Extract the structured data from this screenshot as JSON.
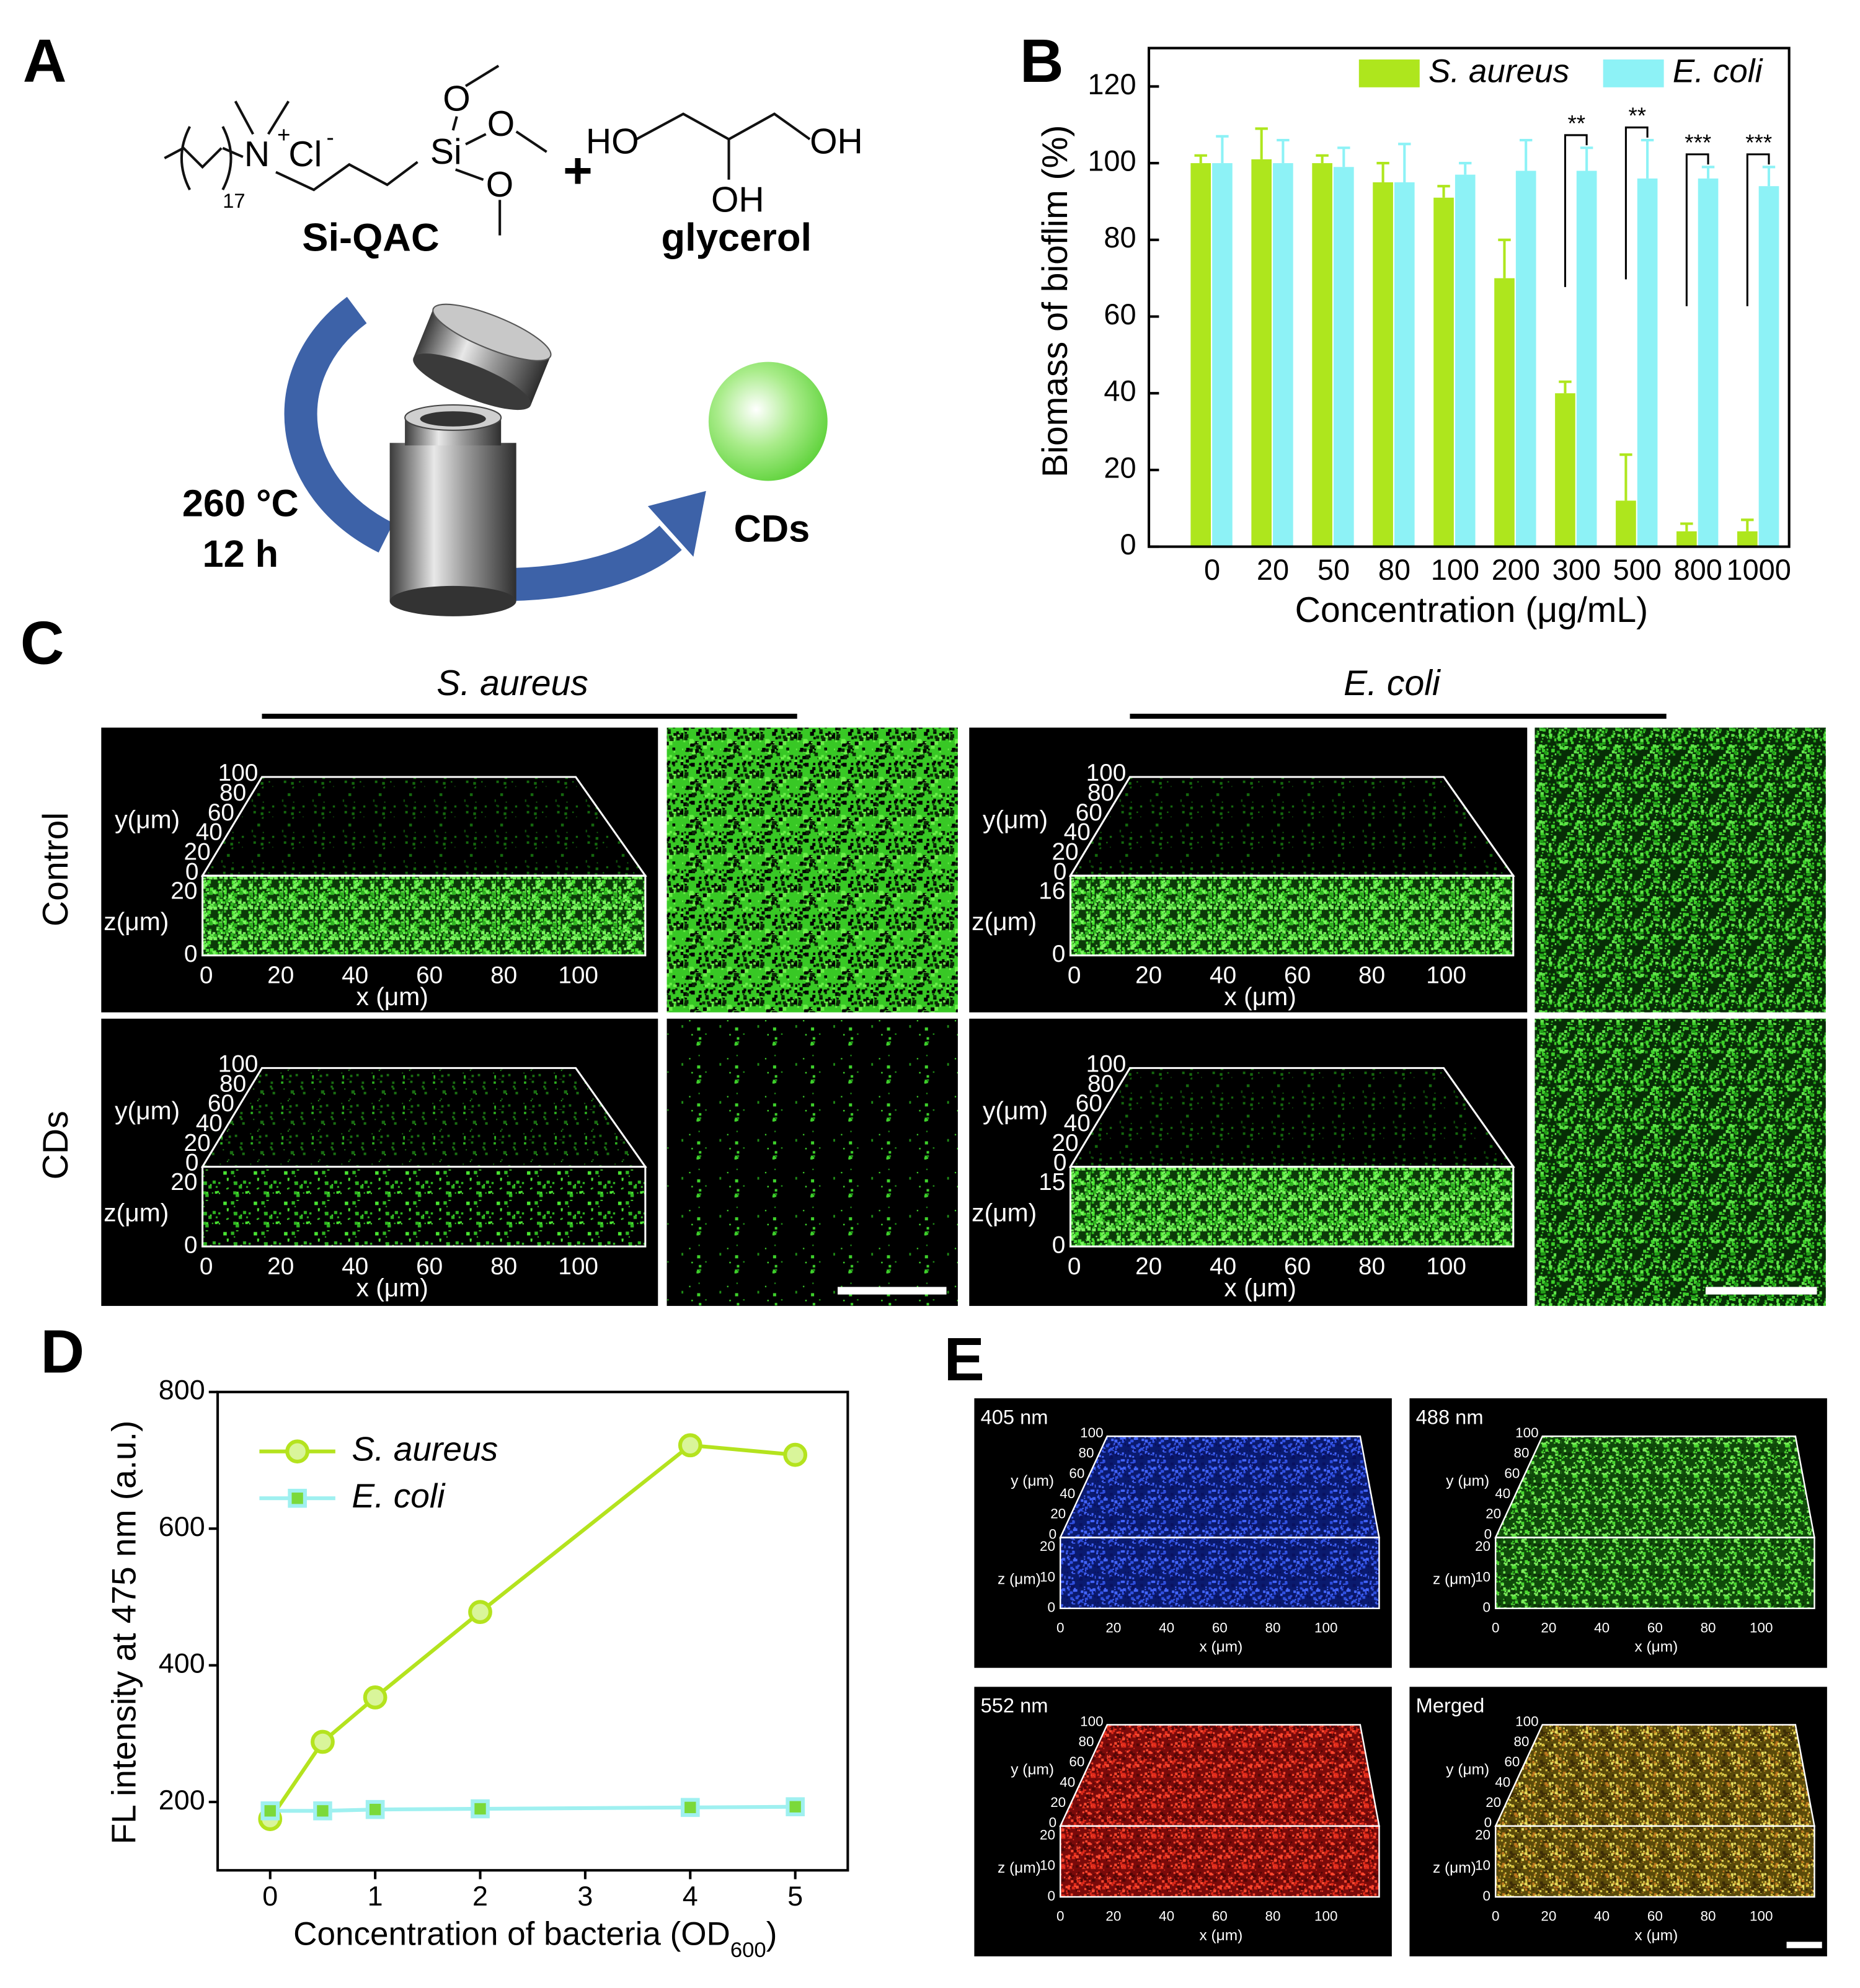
{
  "panels": {
    "A": {
      "letter": "A",
      "reactant1": {
        "atoms": [
          "N",
          "+",
          "Cl",
          "-",
          "17",
          "Si",
          "O",
          "O",
          "O"
        ],
        "name": "Si-QAC"
      },
      "plus": "+",
      "reactant2": {
        "atoms": [
          "HO",
          "OH",
          "OH"
        ],
        "name": "glycerol"
      },
      "conditions": [
        "260 °C",
        "12 h"
      ],
      "product": "CDs"
    },
    "B": {
      "letter": "B"
    },
    "C": {
      "letter": "C",
      "columns": [
        "S. aureus",
        "E. coli"
      ],
      "rows": [
        "Control",
        "CDs"
      ],
      "images": [
        {
          "y_label": "y(μm)",
          "y_ticks": [
            "0",
            "20",
            "40",
            "60",
            "80",
            "100"
          ],
          "z_label": "z(μm)",
          "z_ticks": [
            "0",
            "20"
          ],
          "x_label": "x (μm)",
          "x_ticks": [
            "0",
            "20",
            "40",
            "60",
            "80",
            "100"
          ]
        },
        {
          "y_label": "y(μm)",
          "y_ticks": [
            "0",
            "20",
            "40",
            "60",
            "80",
            "100"
          ],
          "z_label": "z(μm)",
          "z_ticks": [
            "0",
            "16"
          ],
          "x_label": "x (μm)",
          "x_ticks": [
            "0",
            "20",
            "40",
            "60",
            "80",
            "100"
          ]
        },
        {
          "y_label": "y(μm)",
          "y_ticks": [
            "0",
            "20",
            "40",
            "60",
            "80",
            "100"
          ],
          "z_label": "z(μm)",
          "z_ticks": [
            "0",
            "20"
          ],
          "x_label": "x (μm)",
          "x_ticks": [
            "0",
            "20",
            "40",
            "60",
            "80",
            "100"
          ]
        },
        {
          "y_label": "y(μm)",
          "y_ticks": [
            "0",
            "20",
            "40",
            "60",
            "80",
            "100"
          ],
          "z_label": "z(μm)",
          "z_ticks": [
            "0",
            "15"
          ],
          "x_label": "x (μm)",
          "x_ticks": [
            "0",
            "20",
            "40",
            "60",
            "80",
            "100"
          ]
        }
      ]
    },
    "D": {
      "letter": "D"
    },
    "E": {
      "letter": "E",
      "images": [
        {
          "label": "405 nm",
          "y_label": "y (μm)",
          "y_ticks": [
            "0",
            "20",
            "40",
            "60",
            "80",
            "100"
          ],
          "z_label": "z (μm)",
          "z_ticks": [
            "0",
            "10",
            "20"
          ],
          "x_label": "x (μm)",
          "x_ticks": [
            "0",
            "20",
            "40",
            "60",
            "80",
            "100"
          ]
        },
        {
          "label": "488 nm",
          "y_label": "y (μm)",
          "y_ticks": [
            "0",
            "20",
            "40",
            "60",
            "80",
            "100"
          ],
          "z_label": "z (μm)",
          "z_ticks": [
            "0",
            "10",
            "20"
          ],
          "x_label": "x (μm)",
          "x_ticks": [
            "0",
            "20",
            "40",
            "60",
            "80",
            "100"
          ]
        },
        {
          "label": "552 nm",
          "y_label": "y (μm)",
          "y_ticks": [
            "0",
            "20",
            "40",
            "60",
            "80",
            "100"
          ],
          "z_label": "z (μm)",
          "z_ticks": [
            "0",
            "10",
            "20"
          ],
          "x_label": "x (μm)",
          "x_ticks": [
            "0",
            "20",
            "40",
            "60",
            "80",
            "100"
          ]
        },
        {
          "label": "Merged",
          "y_label": "y (μm)",
          "y_ticks": [
            "0",
            "20",
            "40",
            "60",
            "80",
            "100"
          ],
          "z_label": "z (μm)",
          "z_ticks": [
            "0",
            "10",
            "20"
          ],
          "x_label": "x (μm)",
          "x_ticks": [
            "0",
            "20",
            "40",
            "60",
            "80",
            "100"
          ]
        }
      ]
    }
  },
  "chart_data": [
    {
      "type": "bar",
      "xlabel": "Concentration (μg/mL)",
      "ylabel": "Biomass of bioflim (%)",
      "categories": [
        "0",
        "20",
        "50",
        "80",
        "100",
        "200",
        "300",
        "500",
        "800",
        "1000"
      ],
      "series": [
        {
          "name": "S. aureus",
          "color": "#aee61d",
          "values": [
            100,
            101,
            100,
            95,
            91,
            70,
            40,
            12,
            4,
            4
          ],
          "errors": [
            2,
            8,
            2,
            5,
            3,
            10,
            3,
            12,
            2,
            3
          ]
        },
        {
          "name": "E. coli",
          "color": "#8df2f6",
          "values": [
            100,
            100,
            99,
            95,
            97,
            98,
            98,
            96,
            96,
            94
          ],
          "errors": [
            7,
            6,
            5,
            10,
            3,
            8,
            6,
            10,
            3,
            5
          ]
        }
      ],
      "significance": [
        null,
        null,
        null,
        null,
        null,
        null,
        "**",
        "**",
        "***",
        "***"
      ],
      "ylim": [
        0,
        130
      ],
      "yticks": [
        0,
        20,
        40,
        60,
        80,
        100,
        120
      ],
      "legend": "top-right"
    },
    {
      "type": "line",
      "xlabel": {
        "text": "Concentration of bacteria (OD",
        "subscript": "600",
        "suffix": ")"
      },
      "ylabel": "FL intensity at 475 nm (a.u.)",
      "x": [
        0,
        0.5,
        1,
        2,
        4,
        5
      ],
      "series": [
        {
          "name": "S. aureus",
          "color": "#b4e31e",
          "marker": "circle",
          "values": [
            175,
            288,
            353,
            478,
            722,
            708
          ]
        },
        {
          "name": "E. coli",
          "color": "#9ff0f0",
          "marker": "square",
          "values": [
            187,
            187,
            189,
            190,
            192,
            193
          ]
        }
      ],
      "xlim": [
        -0.5,
        5.5
      ],
      "ylim": [
        100,
        800
      ],
      "xticks": [
        0,
        1,
        2,
        3,
        4,
        5
      ],
      "yticks": [
        200,
        400,
        600,
        800
      ],
      "legend": "top-left"
    }
  ]
}
